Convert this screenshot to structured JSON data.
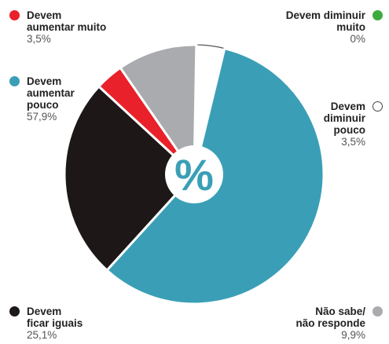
{
  "chart_data": {
    "type": "pie",
    "center_label": "%",
    "slices": [
      {
        "label": "Devem diminuir pouco",
        "value": 3.5,
        "value_label": "3,5%",
        "color": "#ffffff",
        "stroke": "#555555"
      },
      {
        "label": "Devem aumentar pouco",
        "value": 57.9,
        "value_label": "57,9%",
        "color": "#3a9fb6"
      },
      {
        "label": "Devem ficar iguais",
        "value": 25.1,
        "value_label": "25,1%",
        "color": "#1e1718"
      },
      {
        "label": "Devem aumentar muito",
        "value": 3.5,
        "value_label": "3,5%",
        "color": "#e8212a"
      },
      {
        "label": "Não sabe/ não responde",
        "value": 9.9,
        "value_label": "9,9%",
        "color": "#a9abae"
      },
      {
        "label": "Devem diminuir muito",
        "value": 0,
        "value_label": "0%",
        "color": "#3dab3c"
      }
    ],
    "legend": {
      "aumentar_muito": {
        "label": "Devem\naumentar muito",
        "value": "3,5%",
        "color": "#e8212a"
      },
      "aumentar_pouco": {
        "label": "Devem\naumentar\npouco",
        "value": "57,9%",
        "color": "#3a9fb6"
      },
      "ficar_iguais": {
        "label": "Devem\nficar iguais",
        "value": "25,1%",
        "color": "#1e1718"
      },
      "diminuir_muito": {
        "label": "Devem diminuir\nmuito",
        "value": "0%",
        "color": "#3dab3c"
      },
      "diminuir_pouco": {
        "label": "Devem\ndiminuir\npouco",
        "value": "3,5%",
        "color": "#ffffff"
      },
      "nao_sabe": {
        "label": "Não sabe/\nnão responde",
        "value": "9,9%",
        "color": "#a9abae"
      }
    }
  }
}
